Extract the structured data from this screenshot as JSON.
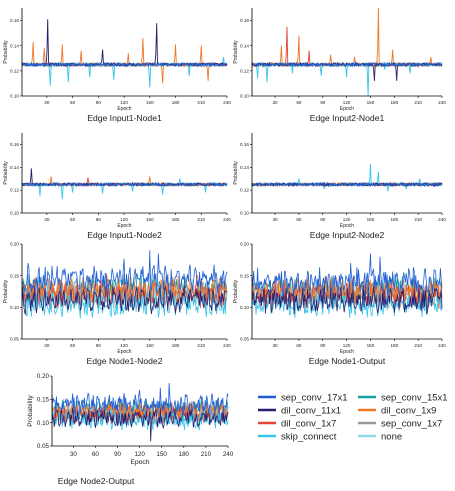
{
  "colors": {
    "sep_conv_17x1": "#1f5fd6",
    "sep_conv_15x1": "#17a0a0",
    "dil_conv_11x1": "#2c1e6e",
    "dil_conv_1x9": "#f0782a",
    "dil_conv_1x7": "#e0463a",
    "sep_conv_1x7": "#9a9a9a",
    "skip_connect": "#37c5ec",
    "none": "#8fd8e8"
  },
  "legend": {
    "items": [
      {
        "key": "sep_conv_17x1",
        "label": "sep_conv_17x1"
      },
      {
        "key": "sep_conv_15x1",
        "label": "sep_conv_15x1"
      },
      {
        "key": "dil_conv_11x1",
        "label": "dil_conv_11x1"
      },
      {
        "key": "dil_conv_1x9",
        "label": "dil_conv_1x9"
      },
      {
        "key": "dil_conv_1x7",
        "label": "dil_conv_1x7"
      },
      {
        "key": "sep_conv_1x7",
        "label": "sep_conv_1x7"
      },
      {
        "key": "skip_connect",
        "label": "skip_connect"
      },
      {
        "key": "none",
        "label": "none"
      }
    ]
  },
  "chart_data": [
    {
      "type": "line",
      "title": "Edge Input1-Node1",
      "xlabel": "Epoch",
      "ylabel": "Probability",
      "xlim": [
        1,
        240
      ],
      "ylim": [
        0.1,
        0.17
      ],
      "xticks": [
        30,
        60,
        90,
        120,
        150,
        180,
        210,
        240
      ],
      "yticks": [
        0.1,
        0.12,
        0.14,
        0.16
      ],
      "series_pattern": "flat",
      "spikes": [
        {
          "x": 14,
          "y": 0.143,
          "s": "dil_conv_1x9"
        },
        {
          "x": 27,
          "y": 0.138,
          "s": "dil_conv_1x9"
        },
        {
          "x": 31,
          "y": 0.161,
          "s": "dil_conv_11x1"
        },
        {
          "x": 34,
          "y": 0.108,
          "s": "skip_connect"
        },
        {
          "x": 48,
          "y": 0.141,
          "s": "dil_conv_1x9"
        },
        {
          "x": 55,
          "y": 0.111,
          "s": "skip_connect"
        },
        {
          "x": 70,
          "y": 0.136,
          "s": "dil_conv_1x9"
        },
        {
          "x": 80,
          "y": 0.115,
          "s": "skip_connect"
        },
        {
          "x": 95,
          "y": 0.137,
          "s": "dil_conv_11x1"
        },
        {
          "x": 108,
          "y": 0.113,
          "s": "skip_connect"
        },
        {
          "x": 125,
          "y": 0.134,
          "s": "dil_conv_1x9"
        },
        {
          "x": 142,
          "y": 0.146,
          "s": "dil_conv_1x9"
        },
        {
          "x": 150,
          "y": 0.107,
          "s": "skip_connect"
        },
        {
          "x": 158,
          "y": 0.158,
          "s": "dil_conv_11x1"
        },
        {
          "x": 165,
          "y": 0.11,
          "s": "dil_conv_1x9"
        },
        {
          "x": 180,
          "y": 0.141,
          "s": "dil_conv_1x9"
        },
        {
          "x": 196,
          "y": 0.116,
          "s": "skip_connect"
        },
        {
          "x": 210,
          "y": 0.14,
          "s": "dil_conv_1x9"
        },
        {
          "x": 218,
          "y": 0.112,
          "s": "dil_conv_1x9"
        },
        {
          "x": 236,
          "y": 0.131,
          "s": "skip_connect"
        }
      ]
    },
    {
      "type": "line",
      "title": "Edge Input2-Node1",
      "xlabel": "Epoch",
      "ylabel": "Probability",
      "xlim": [
        1,
        240
      ],
      "ylim": [
        0.1,
        0.17
      ],
      "xticks": [
        30,
        60,
        90,
        120,
        150,
        180,
        210,
        240
      ],
      "yticks": [
        0.1,
        0.12,
        0.14,
        0.16
      ],
      "series_pattern": "flat",
      "spikes": [
        {
          "x": 8,
          "y": 0.114,
          "s": "skip_connect"
        },
        {
          "x": 20,
          "y": 0.111,
          "s": "skip_connect"
        },
        {
          "x": 38,
          "y": 0.14,
          "s": "dil_conv_1x9"
        },
        {
          "x": 45,
          "y": 0.155,
          "s": "dil_conv_1x7"
        },
        {
          "x": 52,
          "y": 0.118,
          "s": "skip_connect"
        },
        {
          "x": 60,
          "y": 0.148,
          "s": "dil_conv_1x9"
        },
        {
          "x": 73,
          "y": 0.136,
          "s": "dil_conv_1x7"
        },
        {
          "x": 88,
          "y": 0.116,
          "s": "skip_connect"
        },
        {
          "x": 100,
          "y": 0.133,
          "s": "dil_conv_1x9"
        },
        {
          "x": 120,
          "y": 0.115,
          "s": "skip_connect"
        },
        {
          "x": 130,
          "y": 0.131,
          "s": "dil_conv_1x9"
        },
        {
          "x": 147,
          "y": 0.1,
          "s": "skip_connect"
        },
        {
          "x": 155,
          "y": 0.112,
          "s": "dil_conv_11x1"
        },
        {
          "x": 160,
          "y": 0.17,
          "s": "dil_conv_1x9"
        },
        {
          "x": 168,
          "y": 0.121,
          "s": "skip_connect"
        },
        {
          "x": 178,
          "y": 0.137,
          "s": "dil_conv_1x9"
        },
        {
          "x": 183,
          "y": 0.112,
          "s": "dil_conv_11x1"
        },
        {
          "x": 200,
          "y": 0.118,
          "s": "skip_connect"
        },
        {
          "x": 226,
          "y": 0.131,
          "s": "dil_conv_1x9"
        }
      ]
    },
    {
      "type": "line",
      "title": "Edge Input1-Node2",
      "xlabel": "Epoch",
      "ylabel": "Probability",
      "xlim": [
        1,
        240
      ],
      "ylim": [
        0.1,
        0.17
      ],
      "xticks": [
        30,
        60,
        90,
        120,
        150,
        180,
        210,
        240
      ],
      "yticks": [
        0.1,
        0.12,
        0.14,
        0.16
      ],
      "series_pattern": "flat",
      "spikes": [
        {
          "x": 12,
          "y": 0.139,
          "s": "dil_conv_11x1"
        },
        {
          "x": 22,
          "y": 0.115,
          "s": "skip_connect"
        },
        {
          "x": 35,
          "y": 0.132,
          "s": "dil_conv_1x9"
        },
        {
          "x": 48,
          "y": 0.112,
          "s": "skip_connect"
        },
        {
          "x": 60,
          "y": 0.118,
          "s": "skip_connect"
        },
        {
          "x": 78,
          "y": 0.131,
          "s": "dil_conv_1x7"
        },
        {
          "x": 95,
          "y": 0.117,
          "s": "skip_connect"
        },
        {
          "x": 130,
          "y": 0.119,
          "s": "skip_connect"
        },
        {
          "x": 150,
          "y": 0.132,
          "s": "dil_conv_1x9"
        },
        {
          "x": 165,
          "y": 0.116,
          "s": "skip_connect"
        },
        {
          "x": 185,
          "y": 0.13,
          "s": "skip_connect"
        },
        {
          "x": 215,
          "y": 0.118,
          "s": "skip_connect"
        }
      ]
    },
    {
      "type": "line",
      "title": "Edge Input2-Node2",
      "xlabel": "Epoch",
      "ylabel": "Probability",
      "xlim": [
        1,
        240
      ],
      "ylim": [
        0.1,
        0.17
      ],
      "xticks": [
        30,
        60,
        90,
        120,
        150,
        180,
        210,
        240
      ],
      "yticks": [
        0.1,
        0.12,
        0.14,
        0.16
      ],
      "series_pattern": "flat",
      "spikes": [
        {
          "x": 60,
          "y": 0.13,
          "s": "skip_connect"
        },
        {
          "x": 92,
          "y": 0.121,
          "s": "skip_connect"
        },
        {
          "x": 150,
          "y": 0.143,
          "s": "skip_connect"
        },
        {
          "x": 160,
          "y": 0.136,
          "s": "skip_connect"
        },
        {
          "x": 172,
          "y": 0.119,
          "s": "skip_connect"
        },
        {
          "x": 195,
          "y": 0.121,
          "s": "skip_connect"
        },
        {
          "x": 212,
          "y": 0.13,
          "s": "skip_connect"
        }
      ]
    },
    {
      "type": "line",
      "title": "Edge Node1-Node2",
      "xlabel": "Epoch",
      "ylabel": "Probability",
      "xlim": [
        1,
        240
      ],
      "ylim": [
        0.05,
        0.2
      ],
      "xticks": [
        30,
        60,
        90,
        120,
        150,
        180,
        210,
        240
      ],
      "yticks": [
        0.05,
        0.1,
        0.15,
        0.2
      ],
      "series_pattern": "noisy",
      "series_means": {
        "sep_conv_17x1": 0.145,
        "sep_conv_15x1": 0.13,
        "dil_conv_11x1": 0.112,
        "dil_conv_1x9": 0.128,
        "dil_conv_1x7": 0.12,
        "sep_conv_1x7": 0.118,
        "skip_connect": 0.105,
        "none": 0.122
      },
      "spikes": [
        {
          "x": 150,
          "y": 0.19,
          "s": "sep_conv_17x1"
        },
        {
          "x": 160,
          "y": 0.185,
          "s": "sep_conv_17x1"
        },
        {
          "x": 8,
          "y": 0.17,
          "s": "sep_conv_17x1"
        },
        {
          "x": 120,
          "y": 0.177,
          "s": "sep_conv_17x1"
        }
      ]
    },
    {
      "type": "line",
      "title": "Edge Node1-Output",
      "xlabel": "Epoch",
      "ylabel": "Probability",
      "xlim": [
        1,
        240
      ],
      "ylim": [
        0.05,
        0.2
      ],
      "xticks": [
        30,
        60,
        90,
        120,
        150,
        180,
        210,
        240
      ],
      "yticks": [
        0.05,
        0.1,
        0.15,
        0.2
      ],
      "series_pattern": "noisy",
      "series_means": {
        "sep_conv_17x1": 0.142,
        "sep_conv_15x1": 0.128,
        "dil_conv_11x1": 0.112,
        "dil_conv_1x9": 0.127,
        "dil_conv_1x7": 0.12,
        "sep_conv_1x7": 0.118,
        "skip_connect": 0.106,
        "none": 0.12
      },
      "spikes": [
        {
          "x": 150,
          "y": 0.185,
          "s": "sep_conv_17x1"
        },
        {
          "x": 162,
          "y": 0.18,
          "s": "sep_conv_17x1"
        },
        {
          "x": 125,
          "y": 0.17,
          "s": "sep_conv_17x1"
        }
      ]
    },
    {
      "type": "line",
      "title": "Edge Node2-Output",
      "xlabel": "Epoch",
      "ylabel": "Probability",
      "xlim": [
        1,
        240
      ],
      "ylim": [
        0.05,
        0.2
      ],
      "xticks": [
        30,
        60,
        90,
        120,
        150,
        180,
        210,
        240
      ],
      "yticks": [
        0.05,
        0.1,
        0.15,
        0.2
      ],
      "series_pattern": "noisy",
      "series_means": {
        "sep_conv_17x1": 0.14,
        "sep_conv_15x1": 0.128,
        "dil_conv_11x1": 0.11,
        "dil_conv_1x9": 0.126,
        "dil_conv_1x7": 0.118,
        "sep_conv_1x7": 0.118,
        "skip_connect": 0.106,
        "none": 0.12
      },
      "spikes": [
        {
          "x": 148,
          "y": 0.175,
          "s": "sep_conv_17x1"
        },
        {
          "x": 160,
          "y": 0.185,
          "s": "sep_conv_17x1"
        },
        {
          "x": 120,
          "y": 0.17,
          "s": "sep_conv_17x1"
        },
        {
          "x": 135,
          "y": 0.06,
          "s": "dil_conv_11x1"
        }
      ]
    }
  ]
}
